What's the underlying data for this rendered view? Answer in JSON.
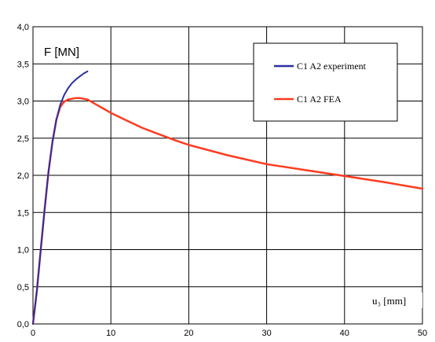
{
  "chart_data": {
    "type": "line",
    "xlabel": "u₃ [mm]",
    "ylabel": "F [MN]",
    "xlim": [
      0,
      50
    ],
    "ylim": [
      0,
      4.0
    ],
    "x_ticks": [
      "0",
      "10",
      "20",
      "30",
      "40",
      "50"
    ],
    "y_ticks": [
      "0,0",
      "0,5",
      "1,0",
      "1,5",
      "2,0",
      "2,5",
      "3,0",
      "3,5",
      "4,0"
    ],
    "grid": true,
    "legend_position": "top-right",
    "series": [
      {
        "name": "C1 A2 experiment",
        "color": "#2b2fa0",
        "x": [
          0,
          0.5,
          1.0,
          1.5,
          2.0,
          2.5,
          3.0,
          3.5,
          4.0,
          4.5,
          5.0,
          5.5,
          6.0,
          6.5,
          7.0
        ],
        "y": [
          0,
          0.45,
          1.0,
          1.55,
          2.05,
          2.45,
          2.75,
          2.95,
          3.08,
          3.17,
          3.24,
          3.29,
          3.33,
          3.37,
          3.4
        ]
      },
      {
        "name": "C1 A2 FEA",
        "color": "#ff3b1f",
        "x": [
          0,
          0.5,
          1.0,
          1.5,
          2.0,
          2.5,
          3.0,
          3.5,
          4.0,
          4.5,
          5.0,
          5.5,
          6.0,
          6.5,
          7.0,
          8.0,
          9.0,
          10,
          12,
          14,
          16,
          18,
          20,
          25,
          30,
          35,
          40,
          45,
          50
        ],
        "y": [
          0,
          0.45,
          1.0,
          1.55,
          2.05,
          2.45,
          2.75,
          2.92,
          2.99,
          3.02,
          3.03,
          3.04,
          3.04,
          3.03,
          3.02,
          2.96,
          2.9,
          2.84,
          2.74,
          2.64,
          2.56,
          2.48,
          2.41,
          2.27,
          2.15,
          2.07,
          1.99,
          1.91,
          1.82
        ]
      }
    ]
  }
}
